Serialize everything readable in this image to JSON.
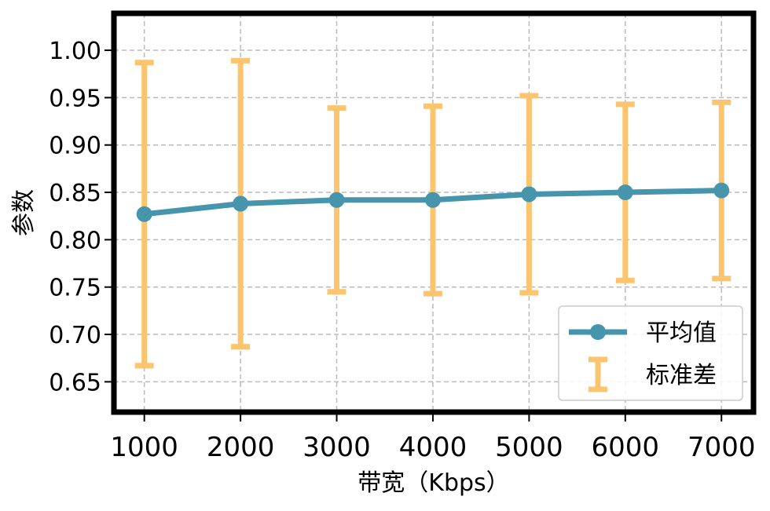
{
  "chart_data": {
    "type": "line",
    "title": "",
    "xlabel": "带宽（Kbps）",
    "ylabel": "参数",
    "x": [
      1000,
      2000,
      3000,
      4000,
      5000,
      6000,
      7000
    ],
    "xticks": [
      "1000",
      "2000",
      "3000",
      "4000",
      "5000",
      "6000",
      "7000"
    ],
    "yticks": [
      "0.65",
      "0.70",
      "0.75",
      "0.80",
      "0.85",
      "0.90",
      "0.95",
      "1.00"
    ],
    "xlim": [
      684,
      7333
    ],
    "ylim": [
      0.618,
      1.039
    ],
    "grid": true,
    "legend_position": "bottom-right",
    "series": [
      {
        "name": "平均值",
        "values": [
          0.827,
          0.838,
          0.842,
          0.842,
          0.848,
          0.85,
          0.852
        ],
        "color": "#4794ad"
      },
      {
        "name": "标准差",
        "type": "errorbar",
        "std": [
          0.16,
          0.151,
          0.097,
          0.099,
          0.104,
          0.093,
          0.093
        ],
        "color": "#fbc46f"
      }
    ]
  }
}
